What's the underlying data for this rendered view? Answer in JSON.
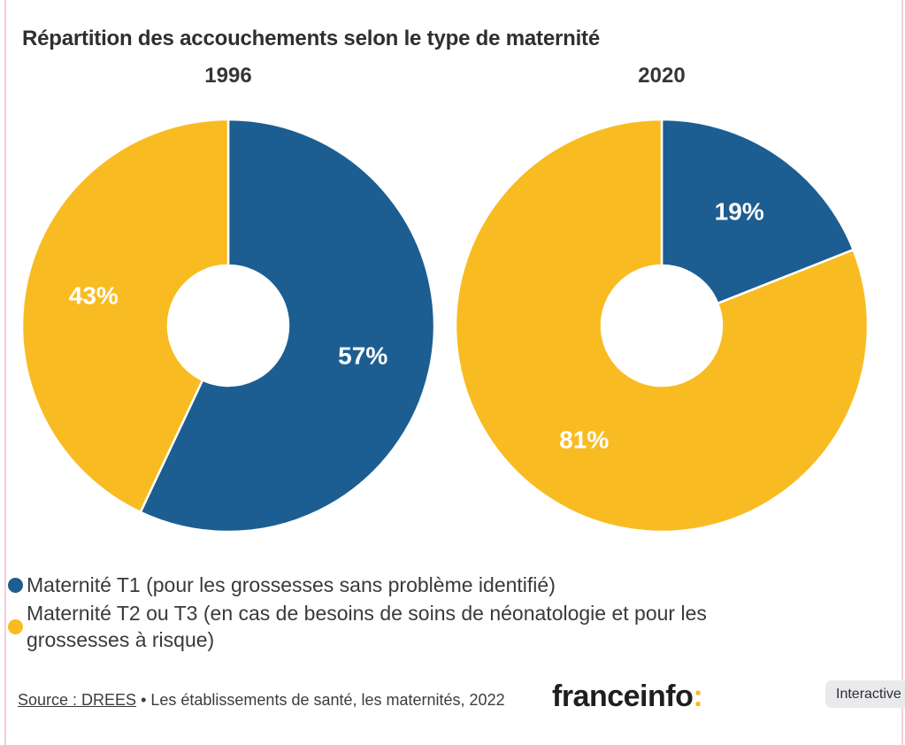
{
  "title": "Répartition des accouchements selon le type de maternité",
  "colors": {
    "blue": "#1c5e91",
    "yellow": "#f8bc22",
    "title_text": "#2f2f2f",
    "slice_label_text": "#ffffff",
    "border_pink": "#f9cddc",
    "brand_black": "#1f1f1f",
    "brand_colon_yellow": "#fcb716",
    "badge_bg": "#e9eaec"
  },
  "chart_data": [
    {
      "type": "pie",
      "donut": true,
      "title": "1996",
      "start_angle_deg": 0,
      "direction": "clockwise",
      "slices": [
        {
          "name": "Maternité T1",
          "value": 57,
          "display": "57%",
          "color_key": "blue"
        },
        {
          "name": "Maternité T2 ou T3",
          "value": 43,
          "display": "43%",
          "color_key": "yellow"
        }
      ]
    },
    {
      "type": "pie",
      "donut": true,
      "title": "2020",
      "start_angle_deg": 0,
      "direction": "clockwise",
      "slices": [
        {
          "name": "Maternité T1",
          "value": 19,
          "display": "19%",
          "color_key": "blue"
        },
        {
          "name": "Maternité T2 ou T3",
          "value": 81,
          "display": "81%",
          "color_key": "yellow"
        }
      ]
    }
  ],
  "legend": {
    "items": [
      {
        "label": "Maternité T1 (pour les grossesses sans problème identifié)",
        "color": "#1c5e91"
      },
      {
        "label": "Maternité T2 ou T3 (en cas de besoins de soins de néonatologie et pour les grossesses à risque)",
        "color": "#f8bc22"
      }
    ]
  },
  "footer": {
    "source_link": "Source : DREES",
    "source_rest": " • Les établissements de santé, les maternités, 2022",
    "brand": "franceinfo",
    "brand_colon": ":",
    "interactive_label": "Interactive"
  }
}
